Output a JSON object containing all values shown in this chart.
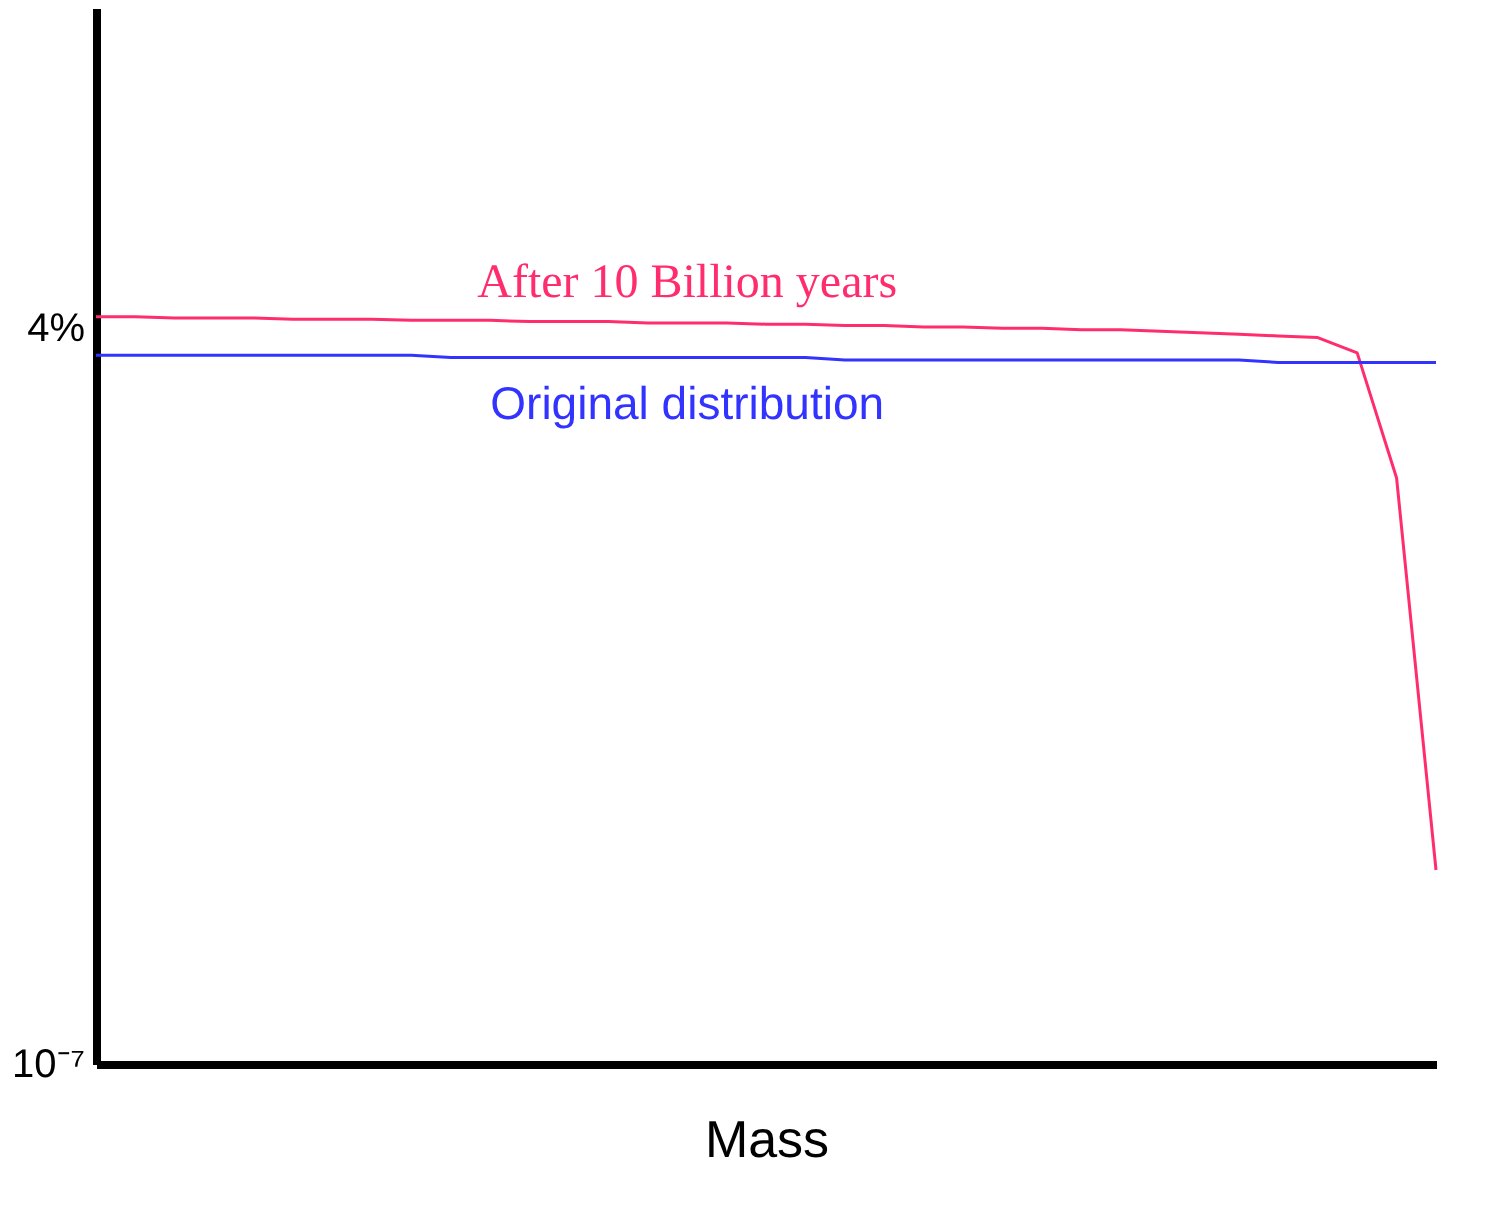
{
  "chart_data": {
    "type": "line",
    "xlabel": "Mass",
    "log": true,
    "ylim": [
      1e-07,
      11
    ],
    "yticks": [
      {
        "value": 1e-07,
        "label": "10⁻⁷"
      },
      {
        "value": 0.04,
        "label": "4%"
      }
    ],
    "categories": [
      null,
      null,
      null,
      null,
      null,
      null,
      null,
      null,
      null,
      null,
      null,
      null,
      null,
      null,
      null,
      null,
      null,
      null,
      null,
      null,
      null,
      null,
      null,
      null,
      null,
      null,
      null,
      null,
      null,
      null,
      null,
      null,
      null,
      null,
      null
    ],
    "legend": false,
    "tick_labels": "y",
    "marker": "none",
    "line_style": "solid",
    "series": [
      {
        "name": "After 10 Billion years",
        "color": "#ff2d6e",
        "values": [
          0.049,
          0.049,
          0.048,
          0.048,
          0.048,
          0.047,
          0.047,
          0.047,
          0.046,
          0.046,
          0.046,
          0.045,
          0.045,
          0.045,
          0.044,
          0.044,
          0.044,
          0.043,
          0.043,
          0.042,
          0.042,
          0.041,
          0.041,
          0.04,
          0.04,
          0.039,
          0.039,
          0.038,
          0.037,
          0.036,
          0.035,
          0.034,
          0.026,
          0.0029,
          3e-06
        ]
      },
      {
        "name": "Original distribution",
        "color": "#3333ff",
        "values": [
          0.025,
          0.025,
          0.025,
          0.025,
          0.025,
          0.025,
          0.025,
          0.025,
          0.025,
          0.024,
          0.024,
          0.024,
          0.024,
          0.024,
          0.024,
          0.024,
          0.024,
          0.024,
          0.024,
          0.023,
          0.023,
          0.023,
          0.023,
          0.023,
          0.023,
          0.023,
          0.023,
          0.023,
          0.023,
          0.023,
          0.022,
          0.022,
          0.022,
          0.022,
          0.022
        ]
      }
    ]
  }
}
